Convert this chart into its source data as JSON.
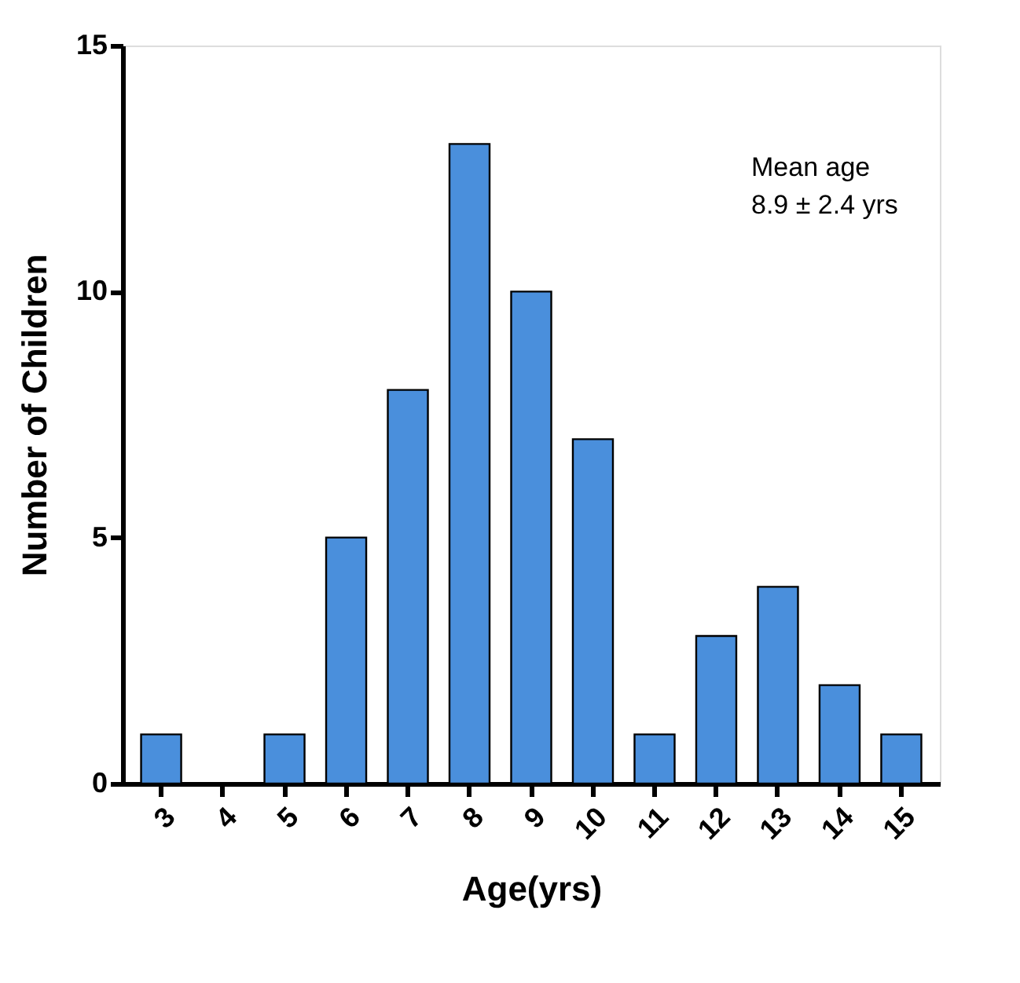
{
  "chart_data": {
    "type": "bar",
    "xlabel": "Age(yrs)",
    "ylabel": "Number of Children",
    "categories": [
      "3",
      "4",
      "5",
      "6",
      "7",
      "8",
      "9",
      "10",
      "11",
      "12",
      "13",
      "14",
      "15"
    ],
    "values": [
      1,
      0,
      1,
      5,
      8,
      13,
      10,
      7,
      1,
      3,
      4,
      2,
      1
    ],
    "color": "#4a8fdc",
    "ylim": [
      0,
      15
    ],
    "yticks": [
      0,
      5,
      10,
      15
    ],
    "grid": false,
    "annotations": [
      "Mean age",
      "8.9 ± 2.4 yrs"
    ]
  }
}
